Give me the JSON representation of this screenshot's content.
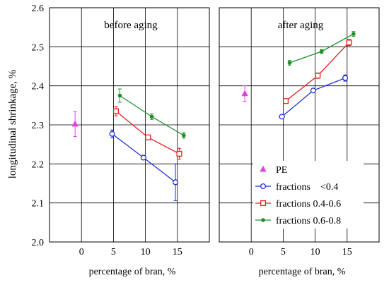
{
  "chart_data": {
    "type": "line",
    "ylabel": "longitudinal shrinkage, %",
    "xlabel": "percentage of bran, %",
    "ylim": [
      2.0,
      2.6
    ],
    "yticks": [
      "2.0",
      "2.1",
      "2.2",
      "2.3",
      "2.4",
      "2.5",
      "2.6"
    ],
    "xlim": [
      -5,
      20
    ],
    "xticks": [
      "0",
      "5",
      "10",
      "15"
    ],
    "grid": true,
    "legend_position": "lower-right of second panel",
    "panels": [
      {
        "title": "before aging",
        "series": [
          {
            "name": "PE",
            "color": "#e040e0",
            "marker": "triangle",
            "points": [
              {
                "x": -1.0,
                "y": 2.302,
                "err": 0.032
              }
            ]
          },
          {
            "name": "fractions    <0.4",
            "color": "#1f2fd0",
            "marker": "circle",
            "points": [
              {
                "x": 4.8,
                "y": 2.277,
                "err": 0.01
              },
              {
                "x": 9.7,
                "y": 2.216,
                "err": 0.003
              },
              {
                "x": 14.7,
                "y": 2.153,
                "err": 0.047
              }
            ]
          },
          {
            "name": "fractions 0.4-0.6",
            "color": "#e02020",
            "marker": "square",
            "points": [
              {
                "x": 5.4,
                "y": 2.335,
                "err": 0.012
              },
              {
                "x": 10.4,
                "y": 2.268,
                "err": 0.004
              },
              {
                "x": 15.3,
                "y": 2.226,
                "err": 0.014
              }
            ]
          },
          {
            "name": "fractions 0.6-0.8",
            "color": "#20902a",
            "marker": "diamond",
            "points": [
              {
                "x": 6.0,
                "y": 2.375,
                "err": 0.017
              },
              {
                "x": 11.0,
                "y": 2.321,
                "err": 0.007
              },
              {
                "x": 16.0,
                "y": 2.273,
                "err": 0.007
              }
            ]
          }
        ]
      },
      {
        "title": "after aging",
        "series": [
          {
            "name": "PE",
            "color": "#e040e0",
            "marker": "triangle",
            "points": [
              {
                "x": -1.0,
                "y": 2.38,
                "err": 0.02
              }
            ]
          },
          {
            "name": "fractions    <0.4",
            "color": "#1f2fd0",
            "marker": "circle",
            "points": [
              {
                "x": 4.8,
                "y": 2.321,
                "err": 0.003
              },
              {
                "x": 9.7,
                "y": 2.388,
                "err": 0.004
              },
              {
                "x": 14.7,
                "y": 2.42,
                "err": 0.008
              }
            ]
          },
          {
            "name": "fractions 0.4-0.6",
            "color": "#e02020",
            "marker": "square",
            "points": [
              {
                "x": 5.4,
                "y": 2.361,
                "err": 0.003
              },
              {
                "x": 10.4,
                "y": 2.426,
                "err": 0.007
              },
              {
                "x": 15.3,
                "y": 2.511,
                "err": 0.008
              }
            ]
          },
          {
            "name": "fractions 0.6-0.8",
            "color": "#20902a",
            "marker": "diamond",
            "points": [
              {
                "x": 6.0,
                "y": 2.459,
                "err": 0.006
              },
              {
                "x": 11.0,
                "y": 2.488,
                "err": 0.005
              },
              {
                "x": 16.0,
                "y": 2.533,
                "err": 0.006
              }
            ]
          }
        ]
      }
    ]
  }
}
